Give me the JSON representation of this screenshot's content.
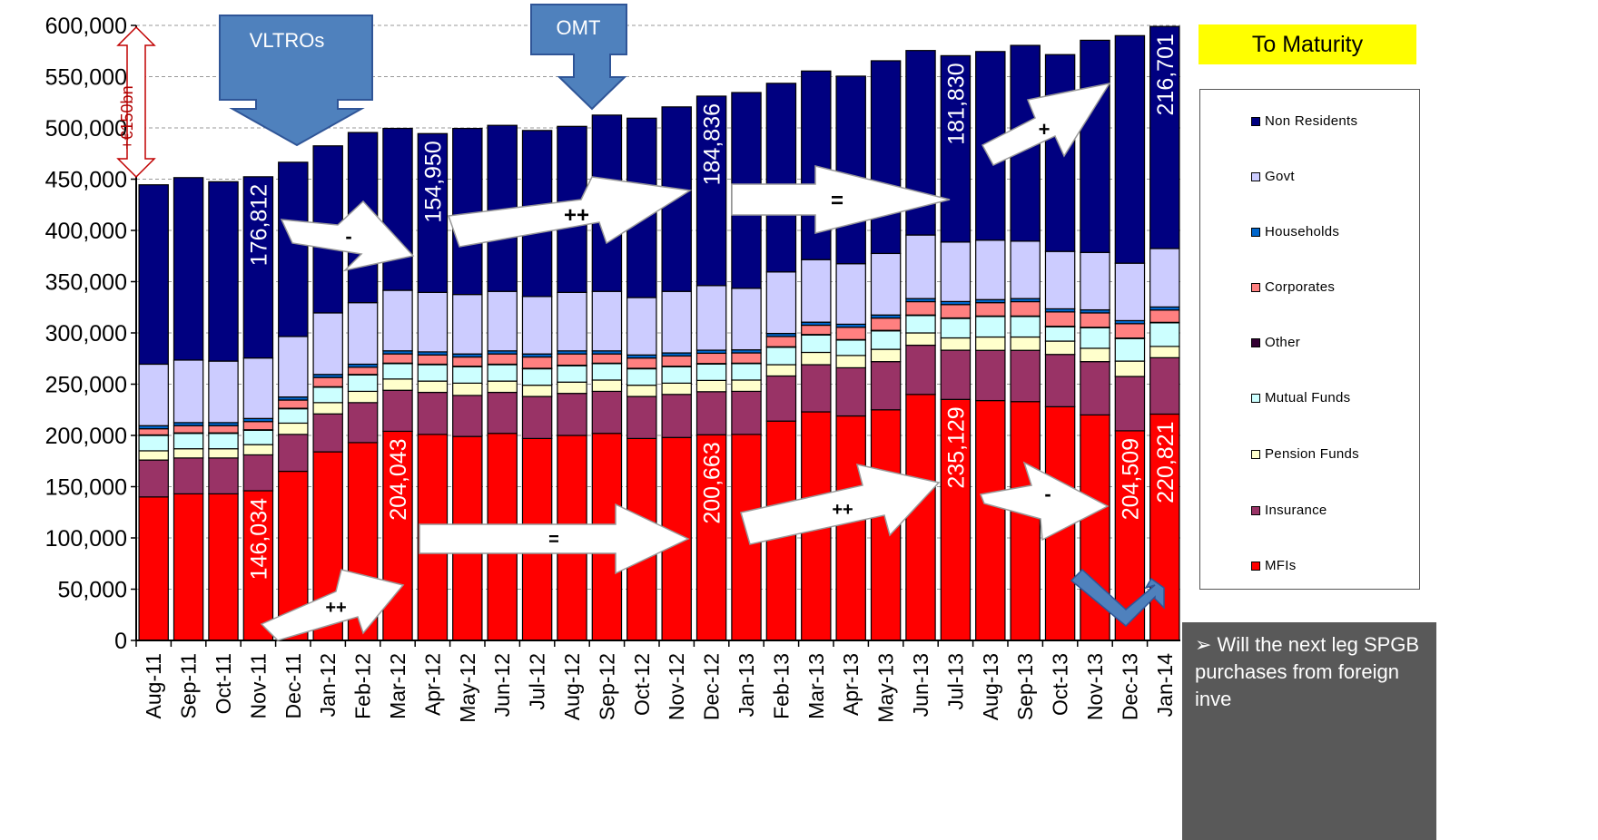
{
  "chart_data": {
    "type": "bar",
    "stacked": true,
    "categories": [
      "Aug-11",
      "Sep-11",
      "Oct-11",
      "Nov-11",
      "Dec-11",
      "Jan-12",
      "Feb-12",
      "Mar-12",
      "Apr-12",
      "May-12",
      "Jun-12",
      "Jul-12",
      "Aug-12",
      "Sep-12",
      "Oct-12",
      "Nov-12",
      "Dec-12",
      "Jan-13",
      "Feb-13",
      "Mar-13",
      "Apr-13",
      "May-13",
      "Jun-13",
      "Jul-13",
      "Aug-13",
      "Sep-13",
      "Oct-13",
      "Nov-13",
      "Dec-13",
      "Jan-14"
    ],
    "ylim": [
      0,
      600000
    ],
    "yticks": [
      "0",
      "50,000",
      "100,000",
      "150,000",
      "200,000",
      "250,000",
      "300,000",
      "350,000",
      "400,000",
      "450,000",
      "500,000",
      "550,000",
      "600,000"
    ],
    "grid": true,
    "legend_position": "right",
    "series": [
      {
        "name": "MFIs",
        "color": "#ff0000",
        "values": [
          140000,
          143000,
          143000,
          146034,
          165000,
          184000,
          193000,
          204043,
          201000,
          199000,
          202000,
          197000,
          200000,
          202000,
          197000,
          198000,
          200663,
          201000,
          214000,
          223000,
          219000,
          225000,
          240000,
          235129,
          234000,
          233000,
          228000,
          220000,
          204509,
          220821
        ]
      },
      {
        "name": "Insurance",
        "color": "#993366",
        "values": [
          36000,
          35000,
          35000,
          35000,
          36000,
          37000,
          39000,
          40000,
          41000,
          40000,
          40000,
          41000,
          41000,
          41000,
          41000,
          42000,
          42000,
          42000,
          44000,
          46000,
          47000,
          47000,
          48000,
          48000,
          49000,
          50000,
          51000,
          52000,
          53000,
          55000
        ]
      },
      {
        "name": "Pension Funds",
        "color": "#ffffcc",
        "values": [
          9000,
          9000,
          9000,
          10000,
          11000,
          11000,
          11000,
          11000,
          11000,
          12000,
          11000,
          11000,
          11000,
          11000,
          11000,
          11000,
          11000,
          11000,
          11000,
          12000,
          12000,
          12000,
          12000,
          12000,
          13000,
          13000,
          13000,
          13000,
          15000,
          11000
        ]
      },
      {
        "name": "Mutual Funds",
        "color": "#ccffff",
        "values": [
          15000,
          15000,
          15000,
          14000,
          14000,
          15000,
          16000,
          15000,
          16000,
          16000,
          16000,
          16000,
          16000,
          16000,
          16000,
          16000,
          16000,
          16000,
          17000,
          17000,
          15000,
          18000,
          17000,
          19000,
          20000,
          20000,
          14000,
          20000,
          22000,
          23000
        ]
      },
      {
        "name": "Other",
        "color": "#330033",
        "values": [
          500,
          500,
          500,
          500,
          500,
          500,
          500,
          500,
          500,
          500,
          500,
          500,
          500,
          500,
          500,
          500,
          500,
          500,
          500,
          500,
          500,
          500,
          500,
          500,
          500,
          500,
          500,
          500,
          500,
          500
        ]
      },
      {
        "name": "Corporates",
        "color": "#ff8080",
        "values": [
          6000,
          7000,
          7000,
          8000,
          8000,
          9000,
          7000,
          9000,
          9000,
          9000,
          10000,
          11000,
          11000,
          9000,
          10000,
          10000,
          10000,
          10000,
          10000,
          9000,
          12000,
          12000,
          13000,
          13000,
          13000,
          14000,
          14000,
          14000,
          14000,
          12000
        ]
      },
      {
        "name": "Households",
        "color": "#0066cc",
        "values": [
          3000,
          3000,
          3000,
          3000,
          3000,
          3000,
          3000,
          3000,
          3000,
          3000,
          3000,
          3000,
          3000,
          3000,
          3000,
          3000,
          3000,
          3000,
          3000,
          3000,
          3000,
          3000,
          3000,
          3000,
          3000,
          3000,
          3000,
          3000,
          3000,
          3000
        ]
      },
      {
        "name": "Govt",
        "color": "#ccccff",
        "values": [
          60000,
          61000,
          60000,
          59000,
          59000,
          60000,
          60000,
          59000,
          58000,
          58000,
          58000,
          56000,
          57000,
          58000,
          56000,
          60000,
          63000,
          60000,
          60000,
          61000,
          59000,
          60000,
          62000,
          58000,
          58000,
          56000,
          56000,
          56000,
          56000,
          57000
        ]
      },
      {
        "name": "Non Residents",
        "color": "#000080",
        "values": [
          175000,
          178000,
          175000,
          176812,
          170000,
          163000,
          166000,
          158000,
          154950,
          162000,
          162000,
          162000,
          162000,
          172000,
          175000,
          180000,
          184836,
          191000,
          184000,
          184000,
          183000,
          188000,
          180000,
          181830,
          184000,
          191000,
          192000,
          207000,
          222000,
          216701
        ]
      }
    ],
    "data_labels": [
      {
        "category": "Nov-11",
        "series": "MFIs",
        "text": "146,034"
      },
      {
        "category": "Mar-12",
        "series": "MFIs",
        "text": "204,043"
      },
      {
        "category": "Dec-12",
        "series": "MFIs",
        "text": "200,663"
      },
      {
        "category": "Jul-13",
        "series": "MFIs",
        "text": "235,129"
      },
      {
        "category": "Dec-13",
        "series": "MFIs",
        "text": "204,509"
      },
      {
        "category": "Jan-14",
        "series": "MFIs",
        "text": "220,821"
      },
      {
        "category": "Nov-11",
        "series": "Non Residents",
        "text": "176,812"
      },
      {
        "category": "Apr-12",
        "series": "Non Residents",
        "text": "154,950"
      },
      {
        "category": "Dec-12",
        "series": "Non Residents",
        "text": "184,836"
      },
      {
        "category": "Jul-13",
        "series": "Non Residents",
        "text": "181,830"
      },
      {
        "category": "Jan-14",
        "series": "Non Residents",
        "text": "216,701"
      }
    ],
    "annotations": {
      "callouts": [
        "VLTROs",
        "OMT"
      ],
      "range_label": "+€150bn",
      "arrow_symbols": [
        "-",
        "++",
        "=",
        "+",
        "++",
        "=",
        "++",
        "-"
      ]
    }
  },
  "panel": {
    "title": "To Maturity",
    "legend": [
      "Non Residents",
      "Govt",
      "Households",
      "Corporates",
      "Other",
      "Mutual Funds",
      "Pension Funds",
      "Insurance",
      "MFIs"
    ],
    "note": "➢ Will the next leg SPGB purchases from foreign inve"
  }
}
